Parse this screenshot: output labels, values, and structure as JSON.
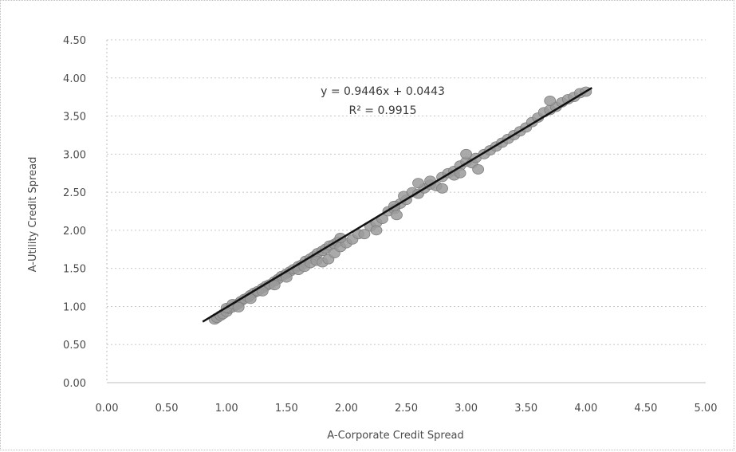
{
  "chart_data": {
    "type": "scatter",
    "title": "",
    "xlabel": "A-Corporate Credit Spread",
    "ylabel": "A-Utility Credit Spread",
    "xlim": [
      0,
      5
    ],
    "ylim": [
      0,
      4.5
    ],
    "xticks": [
      "0.00",
      "0.50",
      "1.00",
      "1.50",
      "2.00",
      "2.50",
      "3.00",
      "3.50",
      "4.00",
      "4.50",
      "5.00"
    ],
    "yticks": [
      "0.00",
      "0.50",
      "1.00",
      "1.50",
      "2.00",
      "2.50",
      "3.00",
      "3.50",
      "4.00",
      "4.50"
    ],
    "grid": true,
    "point_color": "#9b9b9b",
    "trendline": {
      "equation": "y = 0.9446x + 0.0443",
      "r_squared": "R² = 0.9915",
      "slope": 0.9446,
      "intercept": 0.0443,
      "x_range": [
        0.8,
        4.05
      ],
      "color": "#111111"
    },
    "points": [
      [
        0.9,
        0.83
      ],
      [
        0.92,
        0.85
      ],
      [
        0.95,
        0.88
      ],
      [
        0.97,
        0.9
      ],
      [
        1.0,
        0.93
      ],
      [
        1.02,
        0.97
      ],
      [
        1.05,
        0.99
      ],
      [
        1.08,
        1.02
      ],
      [
        1.1,
        1.04
      ],
      [
        1.12,
        1.07
      ],
      [
        1.15,
        1.1
      ],
      [
        1.18,
        1.12
      ],
      [
        1.2,
        1.15
      ],
      [
        1.23,
        1.18
      ],
      [
        1.26,
        1.2
      ],
      [
        1.3,
        1.24
      ],
      [
        1.33,
        1.27
      ],
      [
        1.36,
        1.29
      ],
      [
        1.4,
        1.33
      ],
      [
        1.43,
        1.36
      ],
      [
        1.46,
        1.4
      ],
      [
        1.5,
        1.43
      ],
      [
        1.53,
        1.46
      ],
      [
        1.56,
        1.49
      ],
      [
        1.6,
        1.53
      ],
      [
        1.63,
        1.55
      ],
      [
        1.66,
        1.6
      ],
      [
        1.7,
        1.63
      ],
      [
        1.73,
        1.66
      ],
      [
        1.76,
        1.7
      ],
      [
        1.8,
        1.73
      ],
      [
        1.83,
        1.76
      ],
      [
        1.86,
        1.8
      ],
      [
        1.9,
        1.82
      ],
      [
        1.93,
        1.85
      ],
      [
        1.0,
        0.98
      ],
      [
        1.05,
        1.03
      ],
      [
        1.1,
        0.99
      ],
      [
        1.2,
        1.1
      ],
      [
        1.3,
        1.2
      ],
      [
        1.4,
        1.28
      ],
      [
        1.5,
        1.38
      ],
      [
        1.6,
        1.48
      ],
      [
        1.65,
        1.52
      ],
      [
        1.7,
        1.57
      ],
      [
        1.75,
        1.6
      ],
      [
        1.8,
        1.58
      ],
      [
        1.85,
        1.62
      ],
      [
        1.9,
        1.7
      ],
      [
        1.95,
        1.78
      ],
      [
        2.0,
        1.83
      ],
      [
        1.95,
        1.9
      ],
      [
        2.05,
        1.88
      ],
      [
        2.1,
        1.95
      ],
      [
        2.2,
        2.05
      ],
      [
        2.25,
        2.1
      ],
      [
        2.3,
        2.15
      ],
      [
        2.35,
        2.25
      ],
      [
        2.4,
        2.28
      ],
      [
        2.45,
        2.35
      ],
      [
        2.5,
        2.4
      ],
      [
        2.42,
        2.2
      ],
      [
        2.48,
        2.45
      ],
      [
        2.55,
        2.5
      ],
      [
        2.4,
        2.32
      ],
      [
        2.15,
        1.95
      ],
      [
        2.25,
        2.0
      ],
      [
        2.6,
        2.48
      ],
      [
        2.65,
        2.55
      ],
      [
        2.7,
        2.6
      ],
      [
        2.75,
        2.58
      ],
      [
        2.8,
        2.7
      ],
      [
        2.85,
        2.75
      ],
      [
        2.9,
        2.78
      ],
      [
        2.95,
        2.85
      ],
      [
        3.0,
        2.9
      ],
      [
        3.05,
        2.88
      ],
      [
        3.1,
        2.8
      ],
      [
        3.08,
        2.95
      ],
      [
        3.15,
        3.0
      ],
      [
        3.2,
        3.05
      ],
      [
        3.25,
        3.1
      ],
      [
        3.3,
        3.15
      ],
      [
        3.35,
        3.2
      ],
      [
        3.4,
        3.25
      ],
      [
        3.45,
        3.3
      ],
      [
        3.5,
        3.35
      ],
      [
        3.55,
        3.42
      ],
      [
        3.6,
        3.48
      ],
      [
        3.65,
        3.55
      ],
      [
        3.7,
        3.58
      ],
      [
        3.75,
        3.62
      ],
      [
        3.8,
        3.68
      ],
      [
        3.85,
        3.72
      ],
      [
        3.9,
        3.75
      ],
      [
        3.95,
        3.8
      ],
      [
        4.0,
        3.82
      ],
      [
        2.7,
        2.65
      ],
      [
        2.8,
        2.55
      ],
      [
        2.9,
        2.72
      ],
      [
        3.0,
        3.0
      ],
      [
        2.95,
        2.75
      ],
      [
        2.6,
        2.62
      ],
      [
        3.7,
        3.7
      ]
    ]
  }
}
